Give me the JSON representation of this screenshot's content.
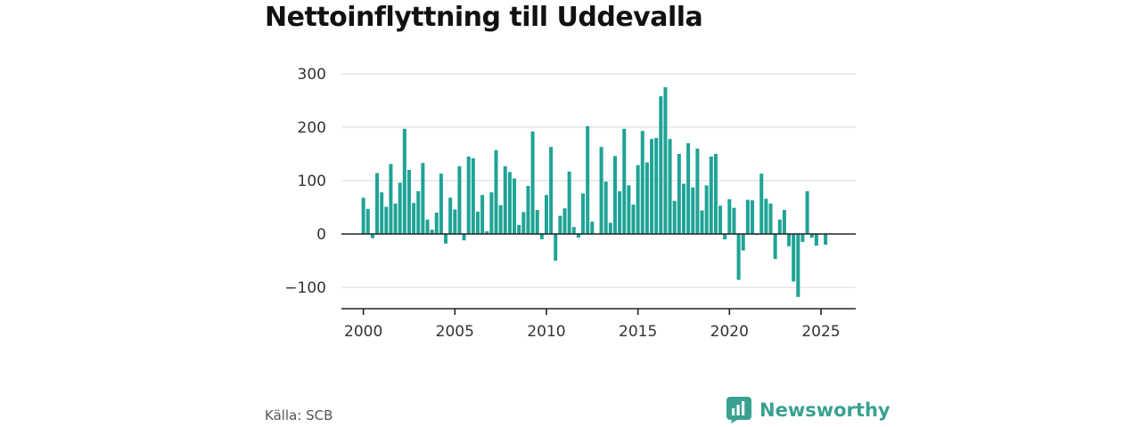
{
  "title": "Nettoinflyttning till Uddevalla",
  "source": "Källa: SCB",
  "brand": {
    "name": "Newsworthy",
    "icon": "newsworthy-logo-icon"
  },
  "colors": {
    "bar": "#1fa396",
    "grid": "#d9d9d9",
    "axis": "#222222",
    "brand": "#3aa190"
  },
  "chart_data": {
    "type": "bar",
    "title": "Nettoinflyttning till Uddevalla",
    "xlabel": "",
    "ylabel": "",
    "x_ticks": [
      2000,
      2005,
      2010,
      2015,
      2020,
      2025
    ],
    "y_ticks": [
      -100,
      0,
      100,
      200,
      300
    ],
    "y_tick_labels": [
      "−100",
      "0",
      "100",
      "200",
      "300"
    ],
    "ylim": [
      -140,
      305
    ],
    "xlim": [
      1998.8,
      2026.9
    ],
    "grid": true,
    "legend": "none",
    "x": [
      2000.0,
      2000.25,
      2000.5,
      2000.75,
      2001.0,
      2001.25,
      2001.5,
      2001.75,
      2002.0,
      2002.25,
      2002.5,
      2002.75,
      2003.0,
      2003.25,
      2003.5,
      2003.75,
      2004.0,
      2004.25,
      2004.5,
      2004.75,
      2005.0,
      2005.25,
      2005.5,
      2005.75,
      2006.0,
      2006.25,
      2006.5,
      2006.75,
      2007.0,
      2007.25,
      2007.5,
      2007.75,
      2008.0,
      2008.25,
      2008.5,
      2008.75,
      2009.0,
      2009.25,
      2009.5,
      2009.75,
      2010.0,
      2010.25,
      2010.5,
      2010.75,
      2011.0,
      2011.25,
      2011.5,
      2011.75,
      2012.0,
      2012.25,
      2012.5,
      2012.75,
      2013.0,
      2013.25,
      2013.5,
      2013.75,
      2014.0,
      2014.25,
      2014.5,
      2014.75,
      2015.0,
      2015.25,
      2015.5,
      2015.75,
      2016.0,
      2016.25,
      2016.5,
      2016.75,
      2017.0,
      2017.25,
      2017.5,
      2017.75,
      2018.0,
      2018.25,
      2018.5,
      2018.75,
      2019.0,
      2019.25,
      2019.5,
      2019.75,
      2020.0,
      2020.25,
      2020.5,
      2020.75,
      2021.0,
      2021.25,
      2021.5,
      2021.75,
      2022.0,
      2022.25,
      2022.5,
      2022.75,
      2023.0,
      2023.25,
      2023.5,
      2023.75,
      2024.0,
      2024.25,
      2024.5,
      2024.75,
      2025.0,
      2025.25,
      2025.5
    ],
    "values": [
      68,
      47,
      -8,
      114,
      78,
      51,
      131,
      57,
      96,
      197,
      120,
      58,
      80,
      133,
      27,
      8,
      40,
      113,
      -18,
      68,
      46,
      127,
      -12,
      145,
      142,
      42,
      73,
      5,
      78,
      157,
      54,
      127,
      116,
      104,
      17,
      41,
      90,
      192,
      45,
      -10,
      73,
      163,
      -50,
      34,
      48,
      117,
      13,
      -7,
      76,
      202,
      23,
      0,
      163,
      98,
      21,
      146,
      80,
      197,
      91,
      55,
      129,
      193,
      134,
      178,
      180,
      258,
      275,
      178,
      62,
      150,
      94,
      170,
      87,
      160,
      44,
      91,
      145,
      150,
      53,
      -10,
      65,
      49,
      -86,
      -31,
      64,
      63,
      -2,
      113,
      66,
      57,
      -47,
      27,
      45,
      -23,
      -89,
      -118,
      -15,
      80,
      -7,
      -22,
      0,
      -20,
      0
    ]
  }
}
